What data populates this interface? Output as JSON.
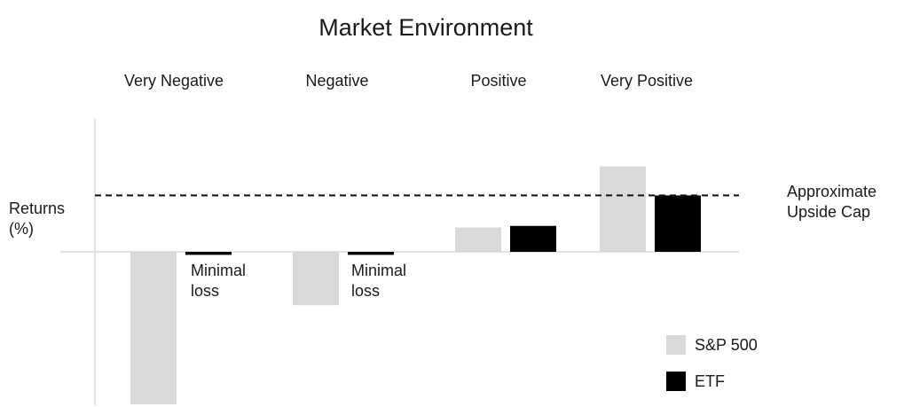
{
  "chart_data": {
    "type": "bar",
    "title": "Market Environment",
    "ylabel": "Returns\n(%)",
    "categories": [
      "Very Negative",
      "Negative",
      "Positive",
      "Very Positive"
    ],
    "series": [
      {
        "name": "S&P 500",
        "color": "#d9d9d9",
        "values": [
          -10,
          -3.5,
          1.6,
          5.6
        ]
      },
      {
        "name": "ETF",
        "color": "#000000",
        "values": [
          -0.2,
          -0.2,
          1.7,
          3.7
        ]
      }
    ],
    "ylim": [
      -10,
      8
    ],
    "reference_line": {
      "label": "Approximate\nUpside Cap",
      "value": 3.7,
      "style": "dashed"
    },
    "annotations": [
      {
        "text": "Minimal\nloss",
        "category": "Very Negative"
      },
      {
        "text": "Minimal\nloss",
        "category": "Negative"
      }
    ],
    "legend": {
      "position": "bottom-right"
    },
    "grid": false
  }
}
